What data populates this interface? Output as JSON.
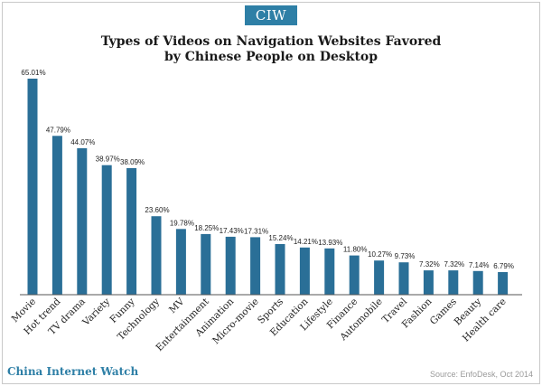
{
  "header": {
    "logo_text": "CIW",
    "title_line1": "Types of Videos on Navigation Websites Favored",
    "title_line2": "by Chinese People on Desktop"
  },
  "footer": {
    "brand": "China Internet Watch",
    "source": "Source: EnfoDesk, Oct 2014"
  },
  "colors": {
    "bar": "#2a6f97",
    "accent": "#2e7fa6"
  },
  "chart_data": {
    "type": "bar",
    "title": "Types of Videos on Navigation Websites Favored by Chinese People on Desktop",
    "xlabel": "",
    "ylabel": "",
    "ylim": [
      0,
      70
    ],
    "grid": false,
    "categories": [
      "Movie",
      "Hot trend",
      "TV drama",
      "Variety",
      "Funny",
      "Technology",
      "MV",
      "Entertainment",
      "Animation",
      "Micro-movie",
      "Sports",
      "Education",
      "Lifestyle",
      "Finance",
      "Automobile",
      "Travel",
      "Fashion",
      "Games",
      "Beauty",
      "Health care"
    ],
    "values": [
      65.01,
      47.79,
      44.07,
      38.97,
      38.09,
      23.6,
      19.78,
      18.25,
      17.43,
      17.31,
      15.24,
      14.21,
      13.93,
      11.8,
      10.27,
      9.73,
      7.32,
      7.32,
      7.14,
      6.79
    ],
    "value_labels": [
      "65.01%",
      "47.79%",
      "44.07%",
      "38.97%",
      "38.09%",
      "23.60%",
      "19.78%",
      "18.25%",
      "17.43%",
      "17.31%",
      "15.24%",
      "14.21%",
      "13.93%",
      "11.80%",
      "10.27%",
      "9.73%",
      "7.32%",
      "7.32%",
      "7.14%",
      "6.79%"
    ]
  }
}
